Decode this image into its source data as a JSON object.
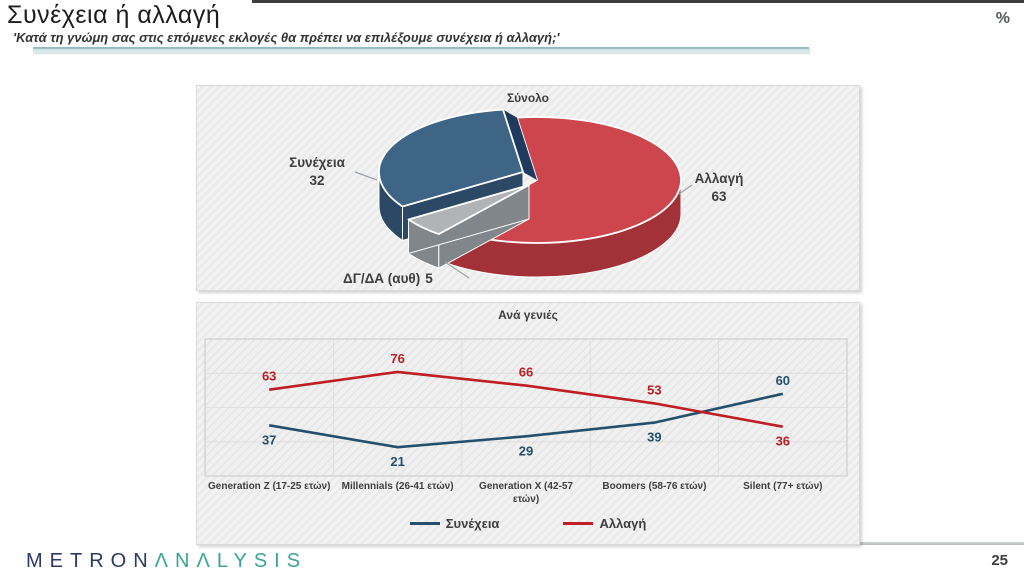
{
  "header": {
    "title": "Συνέχεια ή αλλαγή",
    "subtitle": "'Κατά τη γνώμη σας στις επόμενες εκλογές θα πρέπει να επιλέξουμε συνέχεια ή αλλαγή;'",
    "unit_label": "%"
  },
  "footer": {
    "logo_metron": "METRON",
    "logo_analysis": "ΛNΛLYSIS",
    "page_number": "25"
  },
  "colors": {
    "accent_teal_bar": "#9fc3c6",
    "top_line": "#3d3d3d",
    "continuity_blue": "#24506E",
    "change_red": "#BE1E24"
  },
  "chart_data": [
    {
      "type": "pie",
      "title": "Σύνολο",
      "start_angle_deg": -8,
      "direction": "clockwise",
      "slices": [
        {
          "label": "Αλλαγή",
          "value": 63,
          "color": "#CE464D",
          "side_color": "#A23238"
        },
        {
          "label": "ΔΓ/ΔΑ (αυθ)",
          "value": 5,
          "color": "#B0B4B7",
          "side_color": "#80868A"
        },
        {
          "label": "Συνέχεια",
          "value": 32,
          "color": "#3F6586",
          "side_color": "#2B4965",
          "wall_color": "#1E3A5E"
        }
      ]
    },
    {
      "type": "line",
      "title": "Ανά γενιές",
      "categories": [
        "Generation Z (17-25 ετών)",
        "Millennials (26-41 ετών)",
        "Generation X (42-57 ετών)",
        "Boomers (58-76 ετών)",
        "Silent (77+ ετών)"
      ],
      "series": [
        {
          "name": "Συνέχεια",
          "color": "#24506E",
          "values": [
            37,
            21,
            29,
            39,
            60
          ],
          "label_positions": [
            "below",
            "below",
            "below",
            "below",
            "above"
          ]
        },
        {
          "name": "Αλλαγή",
          "color": "#BE1E24",
          "values": [
            63,
            76,
            66,
            53,
            36
          ],
          "label_positions": [
            "above",
            "above",
            "above",
            "above",
            "below"
          ]
        }
      ],
      "ylim": [
        0,
        100
      ],
      "grid": true,
      "legend_position": "bottom"
    }
  ]
}
